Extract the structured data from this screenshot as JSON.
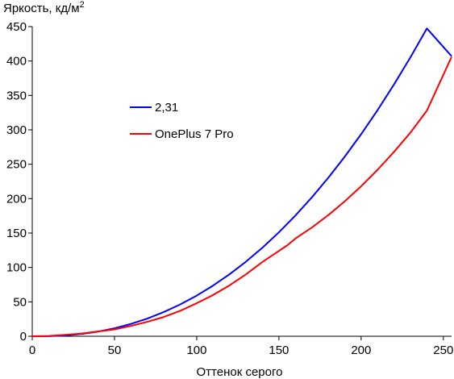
{
  "chart_data": {
    "type": "line",
    "ylabel": "Яркость, кд/м",
    "ylabel_superscript": "2",
    "xlabel": "Оттенок серого",
    "xlim": [
      0,
      255
    ],
    "ylim": [
      0,
      450
    ],
    "x_ticks": [
      0,
      50,
      100,
      150,
      200,
      250
    ],
    "y_ticks": [
      0,
      50,
      100,
      150,
      200,
      250,
      300,
      350,
      400,
      450
    ],
    "grid": false,
    "legend_position": "upper-left",
    "series": [
      {
        "name": "2,31",
        "color": "#0000ff",
        "x": [
          0,
          10,
          20,
          30,
          40,
          50,
          60,
          70,
          80,
          90,
          100,
          110,
          120,
          130,
          140,
          150,
          160,
          170,
          180,
          190,
          200,
          210,
          220,
          230,
          240,
          255
        ],
        "y": [
          0,
          0.2,
          1.2,
          3.4,
          6.8,
          11.6,
          17.9,
          25.7,
          35.2,
          46.3,
          59.1,
          73.7,
          90.2,
          108.5,
          128.8,
          151.1,
          175.4,
          201.8,
          230.3,
          260.9,
          293.7,
          328.7,
          366.0,
          405.5,
          447.3,
          407.0
        ]
      },
      {
        "name": "OnePlus 7 Pro",
        "color": "#ff0000",
        "x": [
          0,
          10,
          20,
          30,
          40,
          50,
          60,
          70,
          80,
          90,
          100,
          110,
          120,
          130,
          140,
          150,
          155,
          160,
          165,
          170,
          180,
          190,
          200,
          210,
          220,
          230,
          240,
          255
        ],
        "y": [
          0,
          0.5,
          2,
          4,
          7,
          10,
          15,
          21,
          28,
          37,
          48,
          60,
          74,
          90,
          108,
          124,
          132,
          142,
          150,
          158,
          176,
          196,
          218,
          242,
          268,
          296,
          328,
          406
        ]
      }
    ]
  }
}
